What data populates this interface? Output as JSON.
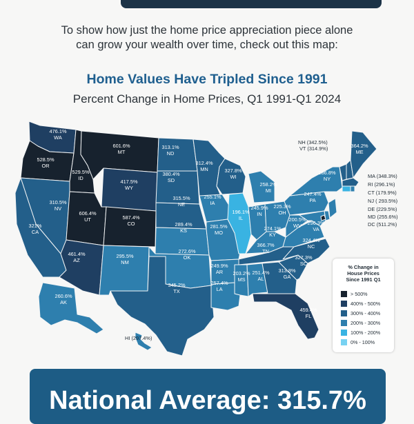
{
  "intro": {
    "line1": "To show how just the home price appreciation piece alone",
    "line2": "can grow your wealth over time, check out this map:"
  },
  "map": {
    "title": "Home Values Have Tripled Since 1991",
    "subtitle": "Percent Change in Home Prices, Q1 1991-Q1 2024",
    "colors": {
      "over500": "#17222e",
      "b400_500": "#1f3f62",
      "b300_400": "#235f8a",
      "b200_300": "#2e7fae",
      "b100_200": "#39b3e2",
      "b0_100": "#78d2f2"
    },
    "states": [
      {
        "abbr": "WA",
        "value": "476.1%"
      },
      {
        "abbr": "OR",
        "value": "528.5%"
      },
      {
        "abbr": "ID",
        "value": "529.5%"
      },
      {
        "abbr": "MT",
        "value": "601.6%"
      },
      {
        "abbr": "ND",
        "value": "313.1%"
      },
      {
        "abbr": "MN",
        "value": "312.4%"
      },
      {
        "abbr": "WI",
        "value": "327.8%"
      },
      {
        "abbr": "MI",
        "value": "258.2%"
      },
      {
        "abbr": "NY",
        "value": "286.8%"
      },
      {
        "abbr": "ME",
        "value": "364.2%"
      },
      {
        "abbr": "SD",
        "value": "380.4%"
      },
      {
        "abbr": "WY",
        "value": "417.5%"
      },
      {
        "abbr": "NV",
        "value": "310.5%"
      },
      {
        "abbr": "CA",
        "value": "321%"
      },
      {
        "abbr": "UT",
        "value": "606.4%"
      },
      {
        "abbr": "CO",
        "value": "587.4%"
      },
      {
        "abbr": "NE",
        "value": "315.5%"
      },
      {
        "abbr": "IA",
        "value": "255.1%"
      },
      {
        "abbr": "IL",
        "value": "196.1%"
      },
      {
        "abbr": "IN",
        "value": "245.9%"
      },
      {
        "abbr": "OH",
        "value": "225.3%"
      },
      {
        "abbr": "PA",
        "value": "247.4%"
      },
      {
        "abbr": "KS",
        "value": "289.4%"
      },
      {
        "abbr": "MO",
        "value": "281.5%"
      },
      {
        "abbr": "KY",
        "value": "274.1%"
      },
      {
        "abbr": "WV",
        "value": "200.5%"
      },
      {
        "abbr": "VA",
        "value": "296.3%"
      },
      {
        "abbr": "AZ",
        "value": "461.4%"
      },
      {
        "abbr": "NM",
        "value": "295.5%"
      },
      {
        "abbr": "OK",
        "value": "272.6%"
      },
      {
        "abbr": "AR",
        "value": "249.9%"
      },
      {
        "abbr": "TN",
        "value": "366.7%"
      },
      {
        "abbr": "NC",
        "value": "324.4%"
      },
      {
        "abbr": "SC",
        "value": "327.3%"
      },
      {
        "abbr": "TX",
        "value": "345.2%"
      },
      {
        "abbr": "LA",
        "value": "257.4%"
      },
      {
        "abbr": "MS",
        "value": "203.2%"
      },
      {
        "abbr": "AL",
        "value": "251.4%"
      },
      {
        "abbr": "GA",
        "value": "313.8%"
      },
      {
        "abbr": "FL",
        "value": "459.4%"
      },
      {
        "abbr": "AK",
        "value": "260.6%"
      }
    ],
    "callouts": {
      "nh": "NH (342.5%)",
      "vt": "VT (314.9%)",
      "ma": "MA (348.3%)",
      "ri": "RI (296.1%)",
      "ct": "CT (179.9%)",
      "nj": "NJ ( 293.5%)",
      "de": "DE (229.5%)",
      "md": "MD (255.6%)",
      "dc": "DC (511.2%)",
      "hi": "HI (297.4%)"
    },
    "legend": {
      "title_line1": "% Change in",
      "title_line2": "House Prices",
      "title_line3": "Since 1991 Q1",
      "items": [
        "> 500%",
        "400% - 500%",
        "300% - 400%",
        "200% - 300%",
        "100% - 200%",
        "0% - 100%"
      ]
    }
  },
  "national": {
    "text": "National Average: 315.7%"
  }
}
